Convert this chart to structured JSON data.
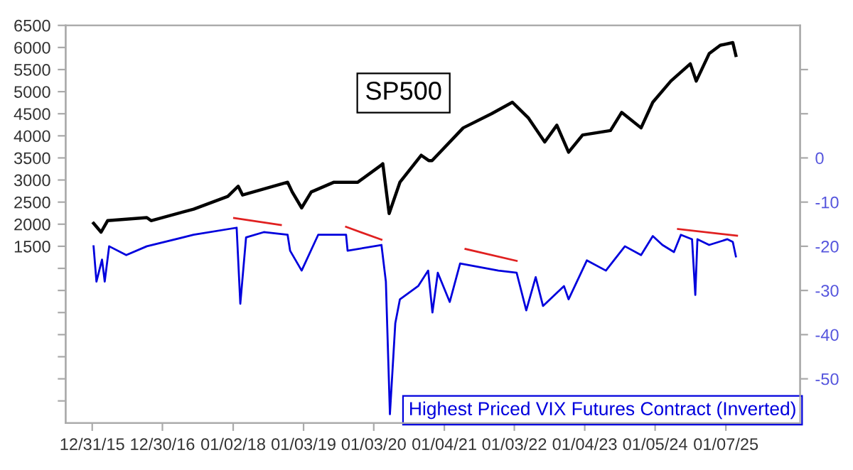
{
  "chart_data": {
    "type": "line",
    "legend": false,
    "grid": false,
    "xlim": [
      "2015-08-15",
      "2026-01-28"
    ],
    "xticks": [
      {
        "value": "2015-12-31",
        "label": "12/31/15"
      },
      {
        "value": "2016-12-30",
        "label": "12/30/16"
      },
      {
        "value": "2018-01-02",
        "label": "01/02/18"
      },
      {
        "value": "2019-01-03",
        "label": "01/03/19"
      },
      {
        "value": "2020-01-03",
        "label": "01/03/20"
      },
      {
        "value": "2021-01-04",
        "label": "01/04/21"
      },
      {
        "value": "2022-01-03",
        "label": "01/03/22"
      },
      {
        "value": "2023-01-04",
        "label": "01/04/23"
      },
      {
        "value": "2024-01-05",
        "label": "01/05/24"
      },
      {
        "value": "2025-01-07",
        "label": "01/07/25"
      }
    ],
    "ylim": [
      -2500,
      6500
    ],
    "yticks": [
      {
        "value": -2000,
        "label": null
      },
      {
        "value": -1500,
        "label": null
      },
      {
        "value": -1000,
        "label": null
      },
      {
        "value": -500,
        "label": null
      },
      {
        "value": 0,
        "label": null
      },
      {
        "value": 500,
        "label": null
      },
      {
        "value": 1000,
        "label": null
      },
      1500,
      2000,
      2500,
      3000,
      3500,
      4000,
      4500,
      5000,
      5500,
      6000,
      6500
    ],
    "y2lim": [
      -60,
      30
    ],
    "y2ticks": [
      -50,
      -40,
      -30,
      -20,
      -10,
      0,
      {
        "value": 10,
        "label": null
      },
      {
        "value": 20,
        "label": null
      }
    ],
    "series": [
      {
        "name": "SP500",
        "color": "#000000",
        "x": [
          "2016-01-07",
          "2016-02-15",
          "2016-03-20",
          "2016-10-10",
          "2016-11-01",
          "2017-06-10",
          "2017-12-05",
          "2018-01-28",
          "2018-02-20",
          "2018-10-12",
          "2018-11-05",
          "2018-12-24",
          "2019-02-12",
          "2019-06-10",
          "2019-10-12",
          "2020-02-12",
          "2020-02-19",
          "2020-03-23",
          "2020-05-18",
          "2020-09-06",
          "2020-10-15",
          "2020-11-01",
          "2021-04-12",
          "2021-09-06",
          "2021-12-24",
          "2022-03-18",
          "2022-06-10",
          "2022-08-12",
          "2022-10-12",
          "2022-12-24",
          "2023-05-18",
          "2023-07-15",
          "2023-10-24",
          "2023-12-24",
          "2024-03-27",
          "2024-07-06",
          "2024-08-06",
          "2024-10-12",
          "2024-12-09",
          "2025-02-12",
          "2025-02-28"
        ],
        "values": [
          2020,
          1820,
          2080,
          2150,
          2080,
          2340,
          2630,
          2860,
          2660,
          2950,
          2730,
          2370,
          2730,
          2950,
          2950,
          3340,
          3370,
          2240,
          2950,
          3560,
          3440,
          3440,
          4180,
          4500,
          4760,
          4400,
          3860,
          4240,
          3630,
          4020,
          4120,
          4530,
          4180,
          4760,
          5240,
          5630,
          5240,
          5860,
          6050,
          6110,
          5820
        ]
      },
      {
        "name": "Highest Priced VIX Futures Contract (Inverted)",
        "color": "#0000dd",
        "axis": "y2",
        "x": [
          "2016-01-07",
          "2016-01-22",
          "2016-02-20",
          "2016-03-05",
          "2016-03-28",
          "2016-06-25",
          "2016-10-10",
          "2017-06-10",
          "2018-01-20",
          "2018-02-08",
          "2018-03-10",
          "2018-06-10",
          "2018-10-12",
          "2018-10-25",
          "2018-12-24",
          "2019-03-20",
          "2019-08-12",
          "2019-08-20",
          "2020-02-12",
          "2020-03-06",
          "2020-03-27",
          "2020-04-24",
          "2020-05-18",
          "2020-08-21",
          "2020-10-12",
          "2020-11-03",
          "2020-12-01",
          "2021-02-01",
          "2021-03-27",
          "2021-10-12",
          "2022-01-15",
          "2022-03-06",
          "2022-04-24",
          "2022-06-01",
          "2022-09-18",
          "2022-10-12",
          "2023-01-15",
          "2023-04-24",
          "2023-08-01",
          "2023-10-24",
          "2023-12-24",
          "2024-02-12",
          "2024-04-12",
          "2024-05-18",
          "2024-07-15",
          "2024-08-01",
          "2024-08-12",
          "2024-10-12",
          "2025-01-15",
          "2025-02-12",
          "2025-02-28"
        ],
        "values": [
          -20,
          -28,
          -23,
          -28,
          -20,
          -22,
          -20,
          -17.4,
          -15.8,
          -33,
          -18,
          -16.8,
          -17.4,
          -21,
          -25.5,
          -17.4,
          -17.4,
          -21,
          -19.7,
          -28,
          -58,
          -37.4,
          -32,
          -29,
          -25.5,
          -35,
          -26,
          -32.6,
          -23.9,
          -25.5,
          -26,
          -34.5,
          -27,
          -33.5,
          -29,
          -32,
          -23.2,
          -25.5,
          -20,
          -22,
          -17.7,
          -19.7,
          -21.3,
          -17.4,
          -18.4,
          -31,
          -18.4,
          -19.7,
          -18.4,
          -19,
          -22.3
        ]
      },
      {
        "color": "#e02020",
        "axis": "y2",
        "x": [
          "2018-01-07",
          "2018-09-07"
        ],
        "values": [
          -13.6,
          -15.2
        ]
      },
      {
        "color": "#e02020",
        "axis": "y2",
        "x": [
          "2019-08-12",
          "2020-02-12"
        ],
        "values": [
          -15.6,
          -18.5
        ]
      },
      {
        "color": "#e02020",
        "axis": "y2",
        "x": [
          "2021-04-24",
          "2022-01-15"
        ],
        "values": [
          -20.6,
          -23.3
        ]
      },
      {
        "color": "#e02020",
        "axis": "y2",
        "x": [
          "2024-05-03",
          "2025-03-06"
        ],
        "values": [
          -16.1,
          -17.6
        ]
      }
    ]
  }
}
